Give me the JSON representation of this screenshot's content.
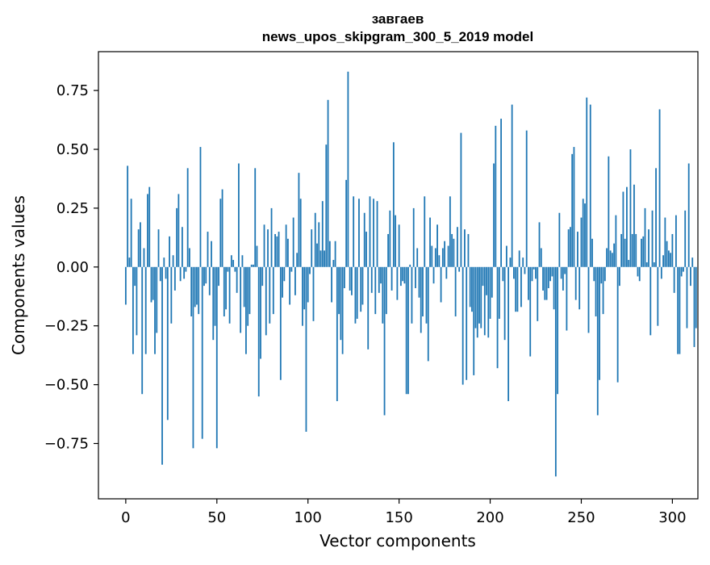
{
  "chart_data": {
    "type": "bar",
    "title": "завгаев",
    "subtitle": "news_upos_skipgram_300_5_2019 model",
    "xlabel": "Vector components",
    "ylabel": "Components values",
    "xlim": [
      -15,
      314
    ],
    "ylim": [
      -0.985,
      0.915
    ],
    "xticks": [
      0,
      50,
      100,
      150,
      200,
      250,
      300
    ],
    "yticks": [
      -0.75,
      -0.5,
      -0.25,
      0.0,
      0.25,
      0.5,
      0.75
    ],
    "ytick_labels": [
      "−0.75",
      "−0.50",
      "−0.25",
      "0.00",
      "0.25",
      "0.50",
      "0.75"
    ],
    "bar_color": "#1f77b4",
    "grid": false,
    "values": [
      -0.16,
      0.43,
      0.04,
      0.29,
      -0.37,
      -0.08,
      -0.29,
      0.16,
      0.19,
      -0.54,
      0.08,
      -0.37,
      0.31,
      0.34,
      -0.15,
      -0.14,
      -0.37,
      -0.28,
      0.16,
      -0.06,
      -0.84,
      0.04,
      -0.05,
      -0.65,
      0.13,
      -0.24,
      0.05,
      -0.1,
      0.25,
      0.31,
      -0.06,
      0.17,
      -0.05,
      -0.02,
      0.42,
      0.08,
      -0.21,
      -0.77,
      -0.17,
      -0.16,
      -0.2,
      0.51,
      -0.73,
      -0.08,
      -0.07,
      0.15,
      -0.12,
      0.11,
      -0.31,
      -0.25,
      -0.77,
      -0.08,
      0.29,
      0.33,
      -0.21,
      -0.18,
      -0.02,
      -0.24,
      0.05,
      0.03,
      -0.02,
      -0.11,
      0.44,
      -0.28,
      0.05,
      -0.17,
      -0.37,
      -0.25,
      -0.2,
      0.01,
      0.01,
      0.42,
      0.09,
      -0.55,
      -0.39,
      -0.08,
      0.18,
      -0.29,
      0.16,
      -0.24,
      0.25,
      -0.2,
      0.14,
      0.13,
      0.15,
      -0.48,
      -0.13,
      -0.06,
      0.18,
      0.12,
      -0.16,
      -0.02,
      0.21,
      -0.12,
      0.06,
      0.4,
      0.29,
      -0.25,
      -0.18,
      -0.7,
      -0.15,
      -0.03,
      0.16,
      -0.23,
      0.23,
      0.1,
      0.19,
      0.07,
      0.28,
      0.07,
      0.52,
      0.71,
      0.11,
      -0.15,
      0.03,
      0.11,
      -0.57,
      -0.2,
      -0.31,
      -0.37,
      -0.09,
      0.37,
      0.83,
      -0.1,
      -0.12,
      0.3,
      -0.24,
      -0.22,
      0.29,
      -0.19,
      -0.16,
      0.23,
      0.15,
      -0.35,
      0.3,
      -0.11,
      0.29,
      -0.2,
      0.28,
      -0.11,
      -0.07,
      -0.24,
      -0.63,
      -0.2,
      0.14,
      0.24,
      -0.1,
      0.53,
      0.22,
      -0.14,
      0.18,
      -0.08,
      -0.06,
      -0.07,
      -0.54,
      -0.54,
      0.01,
      -0.24,
      0.25,
      -0.09,
      0.08,
      -0.13,
      -0.28,
      -0.21,
      0.3,
      -0.24,
      -0.4,
      0.21,
      0.09,
      -0.07,
      0.08,
      0.18,
      0.05,
      -0.15,
      0.08,
      0.11,
      -0.05,
      0.09,
      0.3,
      0.14,
      0.12,
      -0.21,
      0.17,
      -0.02,
      0.57,
      -0.5,
      0.16,
      -0.48,
      0.14,
      -0.17,
      -0.19,
      -0.46,
      -0.26,
      -0.3,
      -0.24,
      -0.26,
      -0.08,
      -0.29,
      -0.12,
      -0.3,
      -0.22,
      -0.13,
      0.44,
      0.6,
      -0.43,
      -0.22,
      0.63,
      -0.06,
      -0.31,
      0.09,
      -0.57,
      0.04,
      0.69,
      -0.05,
      -0.19,
      -0.19,
      0.07,
      -0.17,
      0.04,
      -0.03,
      0.58,
      -0.14,
      -0.38,
      -0.06,
      -0.01,
      -0.05,
      -0.23,
      0.19,
      0.08,
      -0.1,
      -0.14,
      -0.14,
      -0.09,
      -0.06,
      -0.04,
      -0.18,
      -0.89,
      -0.54,
      0.23,
      -0.05,
      -0.1,
      -0.03,
      -0.27,
      0.16,
      0.17,
      0.48,
      0.51,
      -0.14,
      0.15,
      -0.18,
      0.21,
      0.29,
      0.27,
      0.72,
      -0.28,
      0.69,
      0.12,
      -0.06,
      -0.21,
      -0.63,
      -0.48,
      -0.07,
      -0.2,
      -0.06,
      0.08,
      0.47,
      0.07,
      0.06,
      0.1,
      0.22,
      -0.49,
      -0.08,
      0.14,
      0.32,
      0.12,
      0.34,
      0.03,
      0.5,
      0.14,
      0.35,
      0.14,
      -0.04,
      -0.06,
      0.12,
      0.13,
      0.25,
      0.02,
      0.16,
      -0.29,
      0.24,
      0.02,
      0.42,
      -0.25,
      0.67,
      -0.05,
      0.05,
      0.21,
      0.11,
      0.07,
      0.06,
      0.14,
      -0.11,
      0.22,
      -0.37,
      -0.37,
      -0.04,
      -0.02,
      0.24,
      -0.26,
      0.44,
      -0.08,
      0.04,
      -0.34,
      -0.26
    ]
  }
}
